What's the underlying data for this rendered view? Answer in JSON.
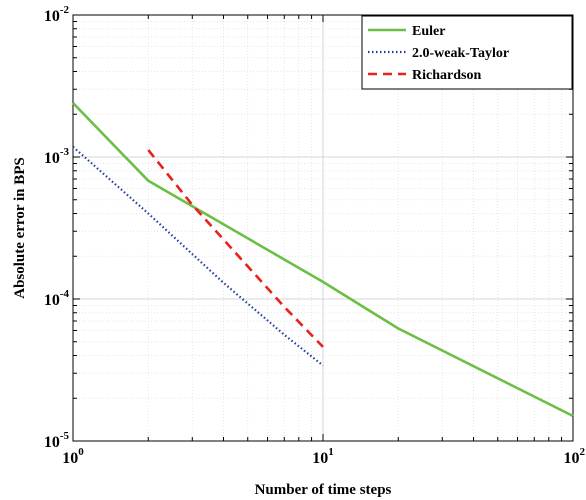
{
  "chart_data": {
    "type": "line",
    "xscale": "log",
    "yscale": "log",
    "xlim": [
      1,
      100
    ],
    "ylim": [
      1e-05,
      0.01
    ],
    "grid": true,
    "minor_grid": true,
    "legend_position": "top-right",
    "title": "",
    "xlabel": "Number of time steps",
    "ylabel": "Absolute error in BPS",
    "x_ticks": [
      {
        "base": "10",
        "exp": "0",
        "value": 1
      },
      {
        "base": "10",
        "exp": "1",
        "value": 10
      },
      {
        "base": "10",
        "exp": "2",
        "value": 100
      }
    ],
    "y_ticks": [
      {
        "base": "10",
        "exp": "-5",
        "value": 1e-05
      },
      {
        "base": "10",
        "exp": "-4",
        "value": 0.0001
      },
      {
        "base": "10",
        "exp": "-3",
        "value": 0.001
      },
      {
        "base": "10",
        "exp": "-2",
        "value": 0.01
      }
    ],
    "series": [
      {
        "name": "Euler",
        "color": "#6cbf45",
        "dash": "solid",
        "x": [
          1,
          2,
          10,
          20,
          100
        ],
        "y": [
          0.0024,
          0.00068,
          0.000132,
          6.2e-05,
          1.5e-05
        ]
      },
      {
        "name": "2.0-weak-Taylor",
        "color": "#1f3f9f",
        "dash": "dotted",
        "x": [
          1,
          2,
          4,
          7,
          10
        ],
        "y": [
          0.00118,
          0.0004,
          0.00013,
          5.6e-05,
          3.4e-05
        ]
      },
      {
        "name": "Richardson",
        "color": "#e8211d",
        "dash": "dashed",
        "x": [
          2,
          3,
          5,
          7,
          10
        ],
        "y": [
          0.00112,
          0.00046,
          0.00017,
          8.8e-05,
          4.6e-05
        ]
      }
    ]
  }
}
